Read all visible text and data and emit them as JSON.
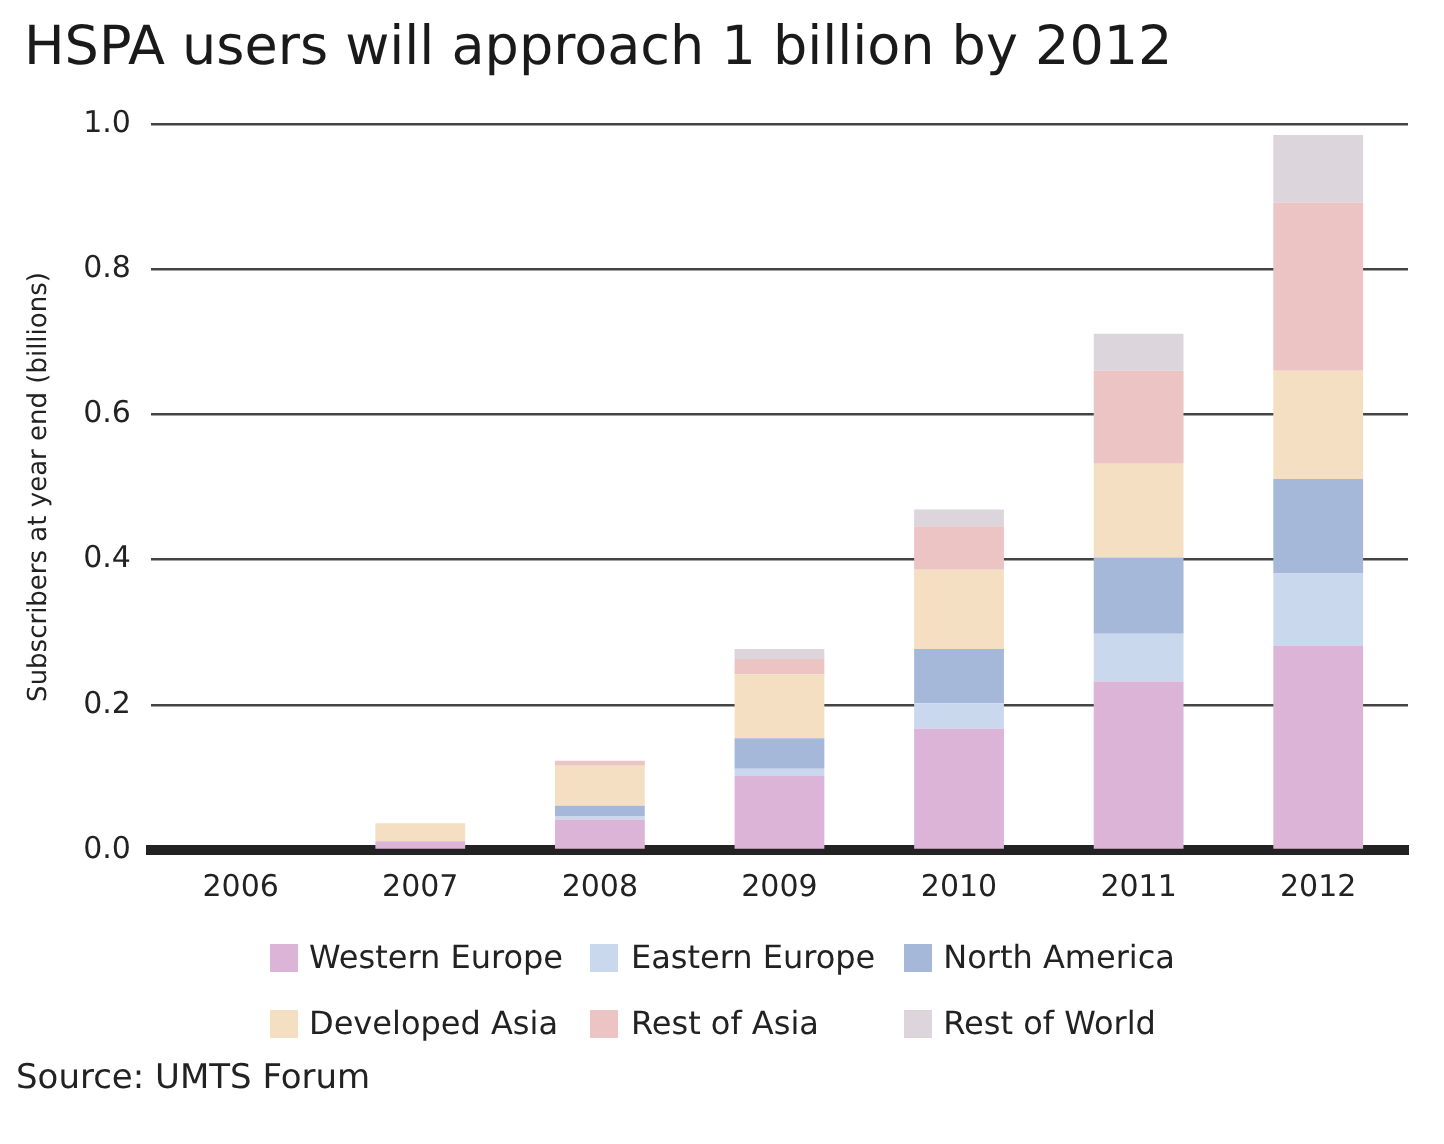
{
  "chart_data": {
    "type": "bar",
    "title": "HSPA users will approach 1 billion by 2012",
    "ylabel": "Subscribers at year end (billions)",
    "categories": [
      "2006",
      "2007",
      "2008",
      "2009",
      "2010",
      "2011",
      "2012"
    ],
    "stacked": true,
    "series": [
      {
        "name": "Western Europe",
        "color": "#dcb4d8",
        "values": [
          0,
          0.012,
          0.042,
          0.102,
          0.167,
          0.232,
          0.281
        ]
      },
      {
        "name": "Eastern Europe",
        "color": "#cad8ee",
        "values": [
          0,
          0,
          0.005,
          0.01,
          0.035,
          0.066,
          0.1
        ]
      },
      {
        "name": "North America",
        "color": "#a5b8d9",
        "values": [
          0,
          0,
          0.014,
          0.042,
          0.075,
          0.105,
          0.13
        ]
      },
      {
        "name": "Developed Asia",
        "color": "#f5dfc2",
        "values": [
          0,
          0.025,
          0.055,
          0.088,
          0.109,
          0.129,
          0.149
        ]
      },
      {
        "name": "Rest of Asia",
        "color": "#ecc4c4",
        "values": [
          0,
          0,
          0.007,
          0.021,
          0.06,
          0.128,
          0.232
        ]
      },
      {
        "name": "Rest of World",
        "color": "#dcd6dc",
        "values": [
          0,
          0,
          0,
          0.014,
          0.023,
          0.051,
          0.093
        ]
      }
    ],
    "ylim": [
      0,
      1.0
    ],
    "yticks": [
      {
        "value": 0,
        "label": "0.0"
      },
      {
        "value": 0.2,
        "label": "0.2"
      },
      {
        "value": 0.4,
        "label": "0.4"
      },
      {
        "value": 0.6,
        "label": "0.6"
      },
      {
        "value": 0.8,
        "label": "0.8"
      },
      {
        "value": 1.0,
        "label": "1.0"
      }
    ],
    "grid": "y",
    "legend": "bottom",
    "annotations": [
      "Source: UMTS Forum"
    ]
  }
}
